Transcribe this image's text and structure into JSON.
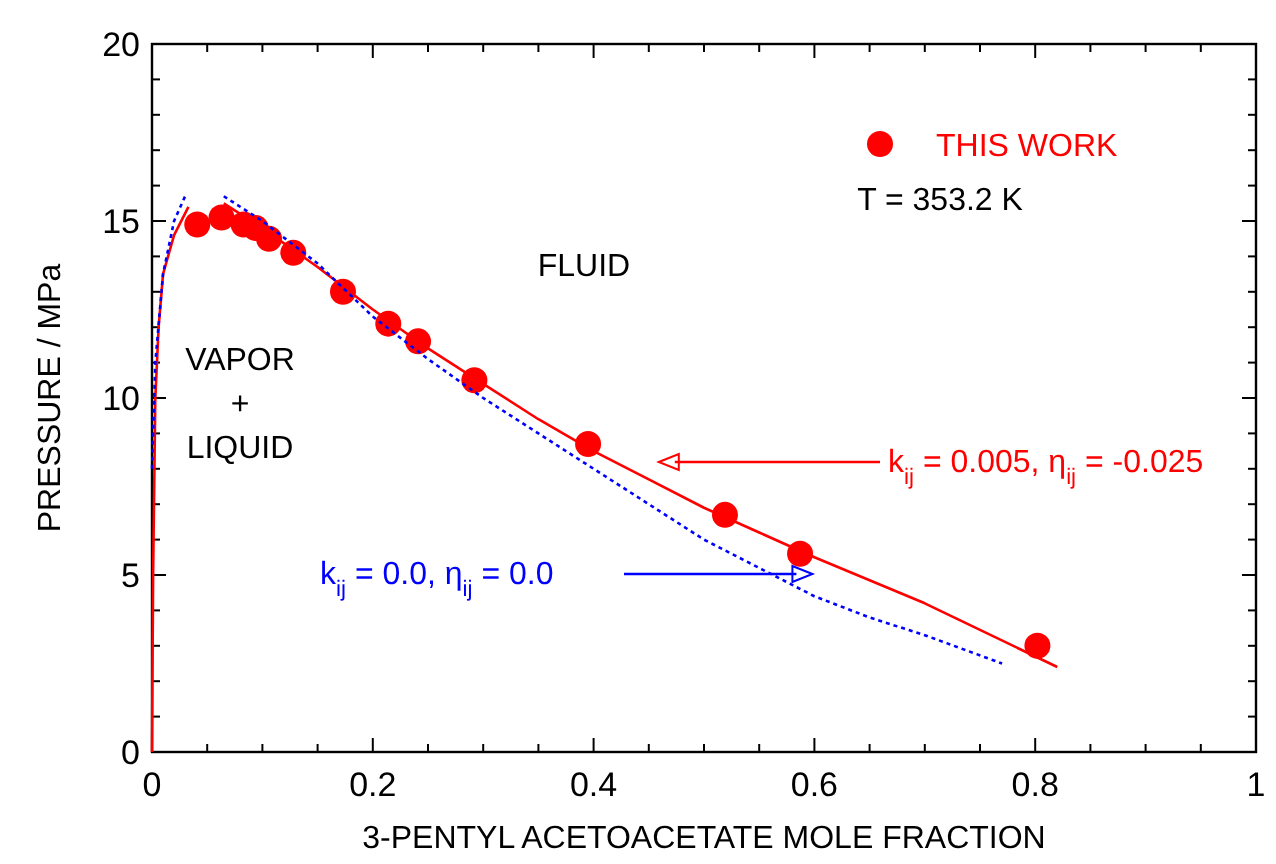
{
  "chart_data": {
    "type": "line",
    "xlabel": "3-PENTYL ACETOACETATE MOLE FRACTION",
    "ylabel": "PRESSURE / MPa",
    "xlim": [
      0,
      1
    ],
    "ylim": [
      0,
      20
    ],
    "xticks": [
      0,
      {
        "value": 0.05,
        "label": null
      },
      {
        "value": 0.1,
        "label": null
      },
      {
        "value": 0.15,
        "label": null
      },
      0.2,
      {
        "value": 0.25,
        "label": null
      },
      {
        "value": 0.3,
        "label": null
      },
      {
        "value": 0.35,
        "label": null
      },
      0.4,
      {
        "value": 0.45,
        "label": null
      },
      {
        "value": 0.5,
        "label": null
      },
      {
        "value": 0.55,
        "label": null
      },
      0.6,
      {
        "value": 0.65,
        "label": null
      },
      {
        "value": 0.7,
        "label": null
      },
      {
        "value": 0.75,
        "label": null
      },
      0.8,
      {
        "value": 0.85,
        "label": null
      },
      {
        "value": 0.9,
        "label": null
      },
      {
        "value": 0.95,
        "label": null
      },
      1
    ],
    "yticks": [
      0,
      {
        "value": 1,
        "label": null
      },
      {
        "value": 2,
        "label": null
      },
      {
        "value": 3,
        "label": null
      },
      {
        "value": 4,
        "label": null
      },
      5,
      {
        "value": 6,
        "label": null
      },
      {
        "value": 7,
        "label": null
      },
      {
        "value": 8,
        "label": null
      },
      {
        "value": 9,
        "label": null
      },
      10,
      {
        "value": 11,
        "label": null
      },
      {
        "value": 12,
        "label": null
      },
      {
        "value": 13,
        "label": null
      },
      {
        "value": 14,
        "label": null
      },
      15,
      {
        "value": 16,
        "label": null
      },
      {
        "value": 17,
        "label": null
      },
      {
        "value": 18,
        "label": null
      },
      {
        "value": 19,
        "label": null
      },
      20
    ],
    "legend": "top right",
    "grid": false,
    "series": [
      {
        "name": "THIS WORK",
        "type": "scatter",
        "marker": "circle",
        "color": "#ff0000",
        "x": [
          0.041,
          0.063,
          0.083,
          0.094,
          0.106,
          0.128,
          0.173,
          0.214,
          0.241,
          0.292,
          0.395,
          0.519,
          0.587,
          0.802
        ],
        "values": [
          14.9,
          15.1,
          14.9,
          14.8,
          14.5,
          14.1,
          13.0,
          12.1,
          11.6,
          10.5,
          8.7,
          6.7,
          5.6,
          3.0
        ]
      },
      {
        "name": "k$_{ij}$ = 0.005, η$_{ij}$ = -0.025",
        "line_style": "solid",
        "color": "#ff0000",
        "x": [
          0,
          0.001,
          0.003,
          0.006,
          0.01,
          0.02,
          0.033,
          0.05,
          0.065,
          0.1,
          0.15,
          0.2,
          0.25,
          0.3,
          0.35,
          0.4,
          0.45,
          0.5,
          0.55,
          0.6,
          0.7,
          0.82
        ],
        "values": [
          0,
          5,
          10,
          12,
          13.5,
          14.6,
          15.4,
          null,
          15.5,
          14.8,
          13.7,
          12.5,
          11.4,
          10.4,
          9.4,
          8.5,
          7.7,
          6.9,
          6.2,
          5.5,
          4.2,
          2.4
        ]
      },
      {
        "name": "k$_{ij}$ = 0.0, η$_{ij}$ = 0.0",
        "line_style": "dotted",
        "color": "#0000ff",
        "x": [
          0,
          0.003,
          0.01,
          0.02,
          0.03,
          0.05,
          0.065,
          0.1,
          0.15,
          0.2,
          0.25,
          0.3,
          0.35,
          0.4,
          0.45,
          0.5,
          0.55,
          0.6,
          0.65,
          0.7,
          0.77
        ],
        "values": [
          8,
          11,
          13.5,
          15,
          15.7,
          null,
          15.7,
          15.0,
          13.8,
          12.3,
          11.1,
          10.0,
          9.0,
          8.0,
          7.0,
          6.0,
          5.2,
          4.4,
          3.8,
          3.3,
          2.5
        ]
      }
    ],
    "annotations": [
      "T = 353.2 K",
      "FLUID",
      "VAPOR\n+\nLIQUID"
    ]
  }
}
